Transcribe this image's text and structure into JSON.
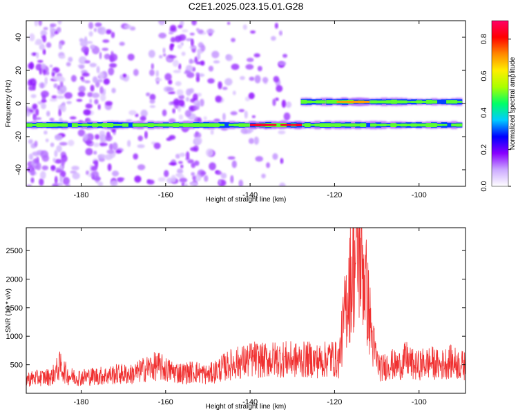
{
  "title": "C2E1.2025.023.15.01.G28",
  "chart_data": [
    {
      "type": "heatmap",
      "xlabel": "Height of straight line (km)",
      "ylabel": "Frequency (Hz)",
      "xlim": [
        -193,
        -89
      ],
      "ylim": [
        -50,
        50
      ],
      "x_ticks": [
        -180,
        -160,
        -140,
        -120,
        -100
      ],
      "y_ticks": [
        -40,
        -20,
        0,
        20,
        40
      ],
      "grid": false,
      "colorbar": {
        "label": "Normalized spectral amplitude",
        "range": [
          0.0,
          0.9
        ],
        "ticks": [
          0.0,
          0.2,
          0.4,
          0.6,
          0.8
        ],
        "colors": [
          "#ffffff",
          "#ccaaff",
          "#8800ff",
          "#0000ff",
          "#00ccff",
          "#00ff66",
          "#aaff00",
          "#ffee00",
          "#ff8800",
          "#ff0000",
          "#ff0066"
        ]
      },
      "bands": [
        {
          "freq": -13,
          "x_from": -193,
          "x_to": -90,
          "amplitude": 0.5
        },
        {
          "freq": -13,
          "x_from": -140,
          "x_to": -128,
          "amplitude": 0.85
        },
        {
          "freq": 1,
          "x_from": -128,
          "x_to": -90,
          "amplitude": 0.5
        },
        {
          "freq": 1,
          "x_from": -122,
          "x_to": -112,
          "amplitude": 0.7
        }
      ]
    },
    {
      "type": "line",
      "xlabel": "Height of straight line (km)",
      "ylabel": "SNR (10 * v/v)",
      "xlim": [
        -193,
        -89
      ],
      "ylim": [
        0,
        2900
      ],
      "x_ticks": [
        -180,
        -160,
        -140,
        -120,
        -100
      ],
      "y_ticks": [
        500,
        1000,
        1500,
        2000,
        2500
      ],
      "color": "#f03030",
      "grid": false,
      "x": [
        -193,
        -190,
        -187,
        -185,
        -183,
        -180,
        -177,
        -174,
        -171,
        -168,
        -165,
        -162,
        -159,
        -156,
        -153,
        -150,
        -147,
        -144,
        -141,
        -139,
        -137,
        -135,
        -132,
        -129,
        -126,
        -123,
        -121,
        -119,
        -117,
        -116,
        -115,
        -114,
        -113,
        -112,
        -111,
        -110,
        -109,
        -107,
        -105,
        -103,
        -101,
        -99,
        -97,
        -95,
        -93,
        -91,
        -89
      ],
      "y": [
        250,
        270,
        290,
        480,
        300,
        280,
        300,
        310,
        340,
        330,
        420,
        480,
        390,
        350,
        380,
        320,
        430,
        520,
        560,
        600,
        570,
        590,
        600,
        580,
        590,
        560,
        640,
        560,
        1700,
        2050,
        2400,
        2500,
        2100,
        1500,
        900,
        560,
        430,
        520,
        470,
        600,
        470,
        520,
        540,
        480,
        560,
        520,
        470
      ]
    }
  ]
}
